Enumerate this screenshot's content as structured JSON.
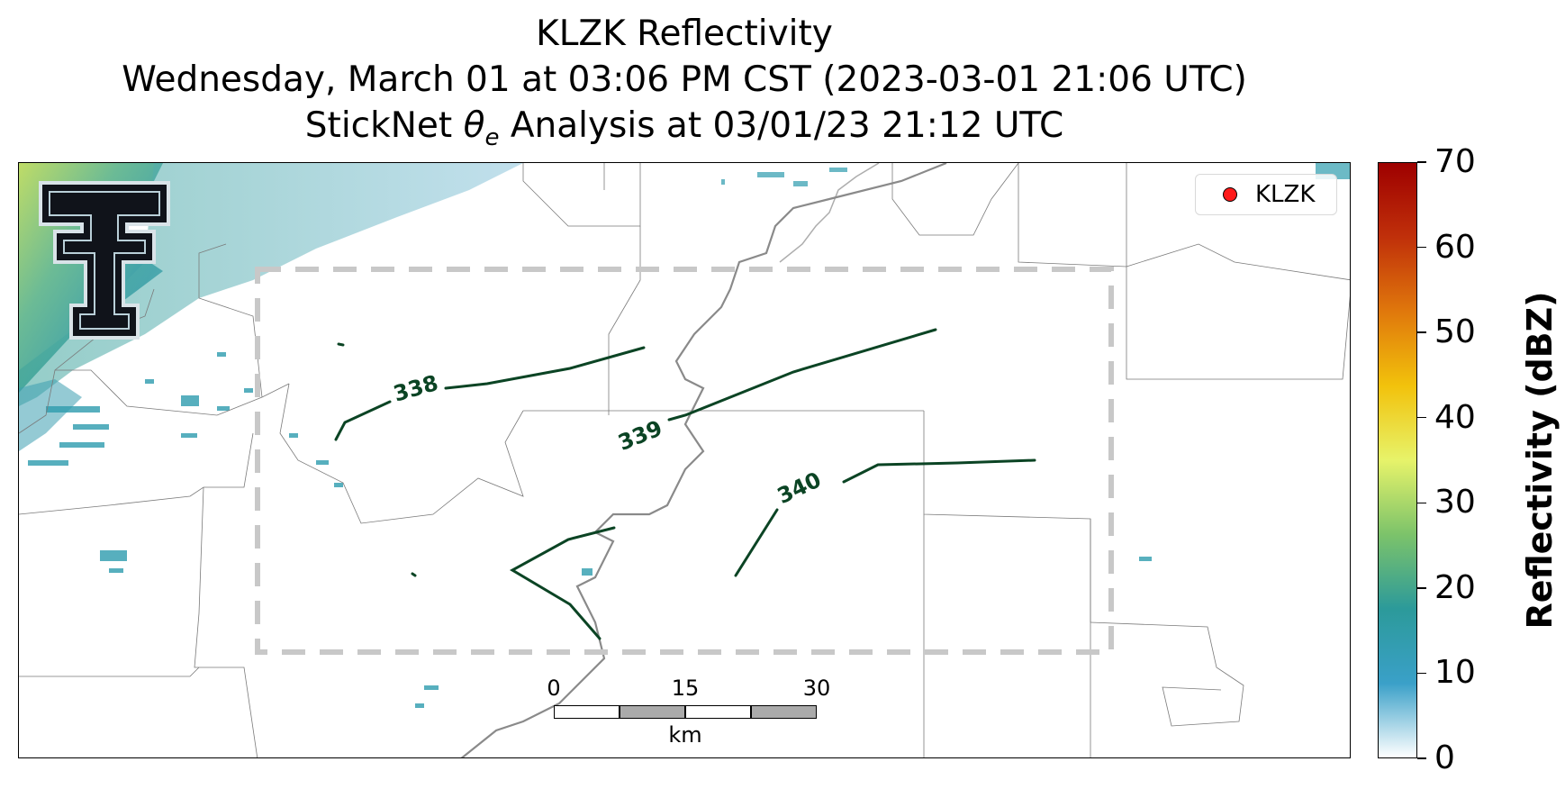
{
  "title": {
    "line1": "KLZK Reflectivity",
    "line2": "Wednesday, March 01 at 03:06 PM CST (2023-03-01 21:06 UTC)",
    "line3_pre": "StickNet ",
    "line3_theta": "θ",
    "line3_sub": "e",
    "line3_post": " Analysis at 03/01/23 21:12 UTC"
  },
  "legend": {
    "label": "KLZK",
    "marker_color": "#ff1a1a"
  },
  "contours": [
    {
      "label": "338",
      "color": "#0b4424"
    },
    {
      "label": "339",
      "color": "#0b4424"
    },
    {
      "label": "340",
      "color": "#0b4424"
    }
  ],
  "scalebar": {
    "ticks": [
      "0",
      "15",
      "30"
    ],
    "unit": "km"
  },
  "colorbar": {
    "title": "Reflectivity (dBZ)",
    "ticks": [
      "0",
      "10",
      "20",
      "30",
      "40",
      "50",
      "60",
      "70"
    ],
    "range": [
      0,
      70
    ],
    "colors": [
      "#ffffff",
      "#3aa0c8",
      "#2c9a9a",
      "#7cc36a",
      "#e7f36a",
      "#f2c20c",
      "#e0780c",
      "#c0300a",
      "#9e0000"
    ]
  },
  "analysis_box_color": "#c8c8c8",
  "river_color": "#888888",
  "logo": {
    "name": "texas-tech-double-t-logo"
  }
}
